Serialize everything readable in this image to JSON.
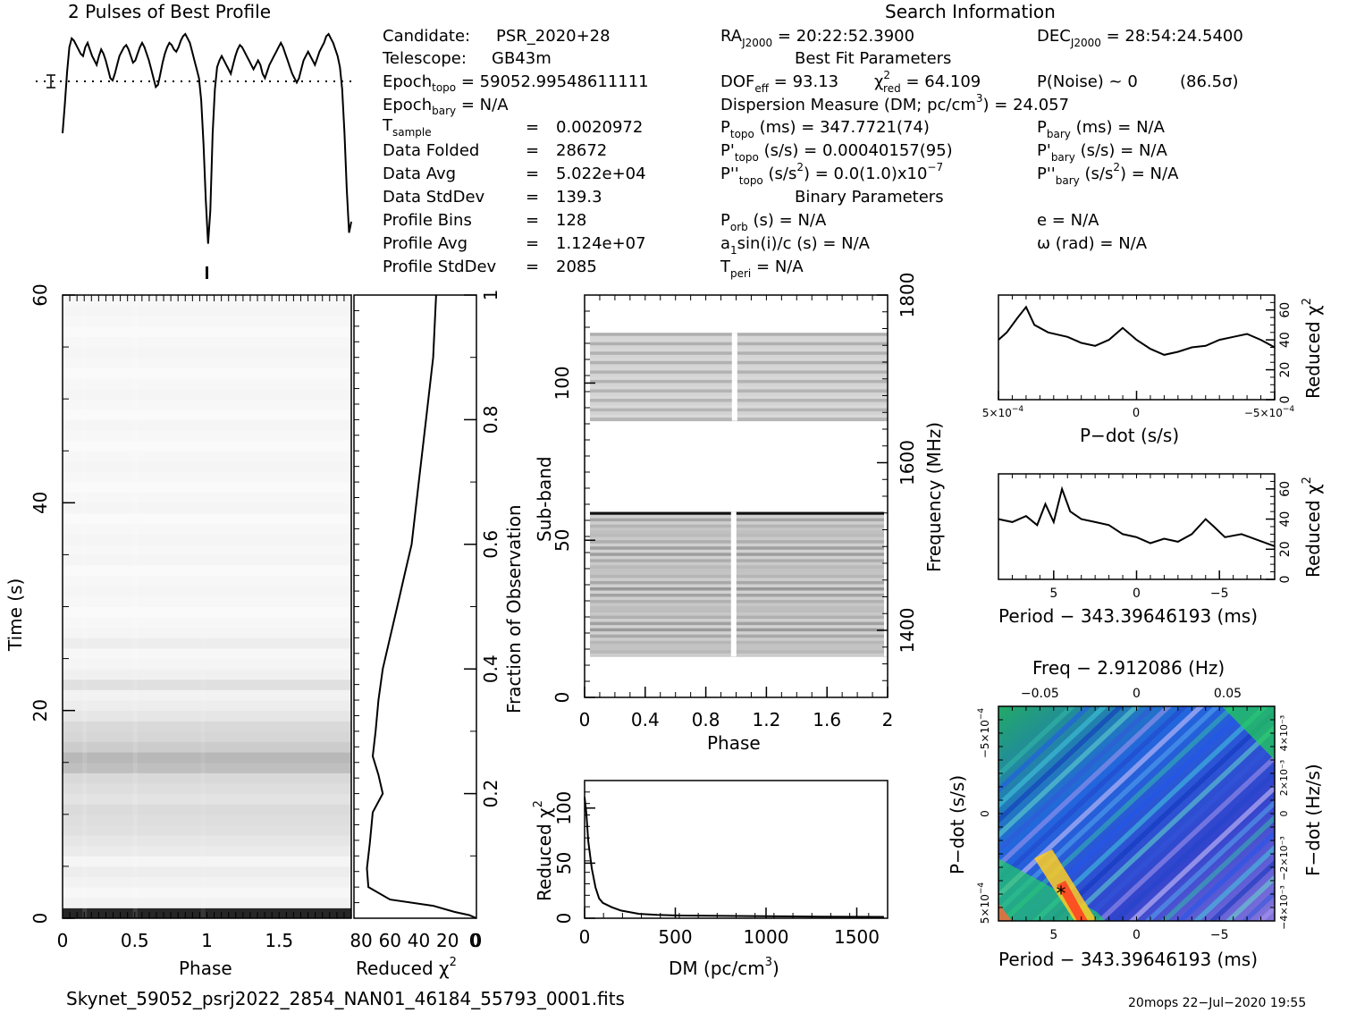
{
  "profile": {
    "title": "2 Pulses of Best Profile",
    "values": [
      0.55,
      0.68,
      0.83,
      0.94,
      0.98,
      0.97,
      0.95,
      0.93,
      0.91,
      0.9,
      0.94,
      0.96,
      0.93,
      0.9,
      0.88,
      0.86,
      0.9,
      0.93,
      0.91,
      0.88,
      0.84,
      0.8,
      0.79,
      0.82,
      0.86,
      0.9,
      0.92,
      0.94,
      0.95,
      0.93,
      0.9,
      0.87,
      0.88,
      0.91,
      0.94,
      0.96,
      0.94,
      0.91,
      0.88,
      0.84,
      0.8,
      0.76,
      0.77,
      0.82,
      0.87,
      0.91,
      0.94,
      0.96,
      0.95,
      0.93,
      0.92,
      0.94,
      0.97,
      0.99,
      1.0,
      0.98,
      0.96,
      0.92,
      0.88,
      0.84,
      0.8,
      0.7,
      0.5,
      0.25,
      0.05,
      0.2,
      0.55,
      0.75,
      0.85,
      0.88,
      0.9,
      0.88,
      0.86,
      0.84,
      0.82,
      0.86,
      0.9,
      0.93,
      0.95,
      0.94,
      0.92,
      0.9,
      0.88,
      0.86,
      0.84,
      0.86,
      0.88,
      0.86,
      0.82,
      0.8,
      0.83,
      0.86,
      0.88,
      0.9,
      0.92,
      0.94,
      0.96,
      0.94,
      0.91,
      0.88,
      0.85,
      0.82,
      0.8,
      0.78,
      0.8,
      0.84,
      0.88,
      0.9,
      0.92,
      0.9,
      0.88,
      0.86,
      0.89,
      0.92,
      0.94,
      0.96,
      0.99,
      1.0,
      0.98,
      0.96,
      0.93,
      0.9,
      0.85,
      0.75,
      0.55,
      0.3,
      0.1,
      0.15
    ],
    "mark_phase": 1.0
  },
  "info": {
    "candidate_label": "Candidate:",
    "candidate": "PSR_2020+28",
    "telescope_label": "Telescope:",
    "telescope": "GB43m",
    "epoch_topo_label": "Epoch",
    "epoch_topo_sub": "topo",
    "epoch_topo": "= 59052.99548611111",
    "epoch_bary_label": "Epoch",
    "epoch_bary_sub": "bary",
    "epoch_bary": "= N/A",
    "tsample_label": "T",
    "tsample_sub": "sample",
    "tsample": "0.0020972",
    "folded_label": "Data Folded",
    "folded": "28672",
    "avg_label": "Data Avg",
    "avg": "5.022e+04",
    "std_label": "Data StdDev",
    "std": "139.3",
    "bins_label": "Profile Bins",
    "bins": "128",
    "pavg_label": "Profile Avg",
    "pavg": "1.124e+07",
    "pstd_label": "Profile StdDev",
    "pstd": "2085",
    "eq": "="
  },
  "search": {
    "title": "Search Information",
    "ra_label": "RA",
    "ra_sub": "J2000",
    "ra": "= 20:22:52.3900",
    "dec_label": "DEC",
    "dec_sub": "J2000",
    "dec": "= 28:54:24.5400",
    "best_fit": "Best Fit Parameters",
    "dof_label": "DOF",
    "dof_sub": "eff",
    "dof": "= 93.13",
    "chi_label": "χ",
    "chi_sup": "2",
    "chi_sub": "red",
    "chi": "= 64.109",
    "pnoise": "P(Noise) ~ 0",
    "sigma": "(86.5σ)",
    "dm_line": "Dispersion Measure (DM; pc/cm",
    "dm_sup": "3",
    "dm_val": ") = 24.057",
    "ptopo_label": "P",
    "ptopo_sub": "topo",
    "ptopo": "(ms) =  347.7721(74)",
    "pbary_label": "P",
    "pbary_sub": "bary",
    "pbary": "(ms) = N/A",
    "pdtopo_label": "P'",
    "pdtopo_sub": "topo",
    "pdtopo": "(s/s) =  0.00040157(95)",
    "pdbary_label": "P'",
    "pdbary_sub": "bary",
    "pdbary": "(s/s) = N/A",
    "pddtopo_label": "P''",
    "pddtopo_sub": "topo",
    "pddtopo_a": "(s/s",
    "pddtopo_sup": "2",
    "pddtopo_b": ") = 0.0(1.0)x10",
    "pddtopo_exp": "−7",
    "pddbary_label": "P''",
    "pddbary_sub": "bary",
    "pddbary_a": "(s/s",
    "pddbary_sup": "2",
    "pddbary_b": ") = N/A",
    "binary": "Binary Parameters",
    "porb_label": "P",
    "porb_sub": "orb",
    "porb": "(s) = N/A",
    "e": "e = N/A",
    "asini_a": "a",
    "asini_sub": "1",
    "asini_b": "sin(i)/c (s) = N/A",
    "omega": "ω (rad) = N/A",
    "tperi_label": "T",
    "tperi_sub": "peri",
    "tperi": "= N/A"
  },
  "time_phase": {
    "xlabel": "Phase",
    "ylabel": "Time (s)",
    "xticks": [
      "0",
      "0.5",
      "1",
      "1.5"
    ],
    "yticks": [
      "0",
      "20",
      "40",
      "60"
    ],
    "rows": [
      0.15,
      0.95,
      0.97,
      0.95,
      0.93,
      0.96,
      0.92,
      0.9,
      0.88,
      0.87,
      0.86,
      0.89,
      0.87,
      0.85,
      0.75,
      0.72,
      0.8,
      0.84,
      0.85,
      0.9,
      0.93,
      0.95,
      0.88,
      0.94,
      0.96,
      0.97,
      0.93,
      0.96,
      0.97,
      0.98,
      0.97,
      0.96,
      0.97,
      0.98,
      0.96,
      0.97,
      0.96,
      0.97,
      0.98,
      0.96,
      0.97,
      0.98,
      0.97,
      0.96,
      0.97,
      0.98,
      0.97,
      0.96,
      0.98,
      0.97,
      0.96,
      0.97,
      0.98,
      0.97,
      0.96,
      0.97,
      0.98,
      0.97,
      0.96,
      0.97
    ]
  },
  "chi_time": {
    "xlabel": "Reduced χ",
    "xlabel_sup": "2",
    "xticks": [
      "80",
      "60",
      "40",
      "20",
      "0"
    ],
    "right_label": "Fraction of Observation",
    "rticks": [
      "0.2",
      "0.4",
      "0.6",
      "0.8",
      "1"
    ],
    "curve": [
      [
        0.0,
        0.0
      ],
      [
        5,
        0.005
      ],
      [
        15,
        0.01
      ],
      [
        30,
        0.02
      ],
      [
        60,
        0.03
      ],
      [
        75,
        0.05
      ],
      [
        76,
        0.08
      ],
      [
        74,
        0.12
      ],
      [
        72,
        0.17
      ],
      [
        65,
        0.2
      ],
      [
        68,
        0.23
      ],
      [
        72,
        0.26
      ],
      [
        70,
        0.3
      ],
      [
        68,
        0.35
      ],
      [
        65,
        0.4
      ],
      [
        60,
        0.45
      ],
      [
        55,
        0.5
      ],
      [
        50,
        0.55
      ],
      [
        45,
        0.6
      ],
      [
        40,
        0.7
      ],
      [
        35,
        0.8
      ],
      [
        30,
        0.9
      ],
      [
        28,
        1.0
      ]
    ]
  },
  "subband": {
    "xlabel": "Phase",
    "ylabel": "Sub-band",
    "xticks": [
      "0",
      "0.4",
      "0.8",
      "1.2",
      "1.6",
      "2"
    ],
    "yticks": [
      "0",
      "50",
      "100"
    ],
    "right_label": "Frequency (MHz)",
    "rticks": [
      "1400",
      "1600",
      "1800"
    ]
  },
  "dm_chi": {
    "xlabel": "DM (pc/cm",
    "xlabel_sup": "3",
    "xlabel_end": ")",
    "ylabel": "Reduced χ",
    "ylabel_sup": "2",
    "xticks": [
      "0",
      "500",
      "1000",
      "1500"
    ],
    "yticks": [
      "0",
      "50",
      "100"
    ],
    "curve": [
      [
        0,
        110
      ],
      [
        10,
        95
      ],
      [
        20,
        70
      ],
      [
        40,
        45
      ],
      [
        60,
        28
      ],
      [
        80,
        18
      ],
      [
        100,
        14
      ],
      [
        150,
        10
      ],
      [
        200,
        7
      ],
      [
        300,
        4
      ],
      [
        400,
        3
      ],
      [
        500,
        2.5
      ],
      [
        700,
        2.2
      ],
      [
        1000,
        1.8
      ],
      [
        1300,
        1.5
      ],
      [
        1650,
        1.2
      ]
    ]
  },
  "pdot_chi": {
    "xlabel": "P−dot (s/s)",
    "ylabel": "Reduced χ",
    "ylabel_sup": "2",
    "xtick_left": "5×10",
    "xtick_left_exp": "−4",
    "xtick_mid": "0",
    "xtick_right": "−5×10",
    "xtick_right_exp": "−4",
    "yticks": [
      "0",
      "20",
      "40",
      "60"
    ],
    "curve": [
      [
        0,
        40
      ],
      [
        0.03,
        45
      ],
      [
        0.07,
        55
      ],
      [
        0.1,
        62
      ],
      [
        0.13,
        50
      ],
      [
        0.18,
        45
      ],
      [
        0.25,
        42
      ],
      [
        0.3,
        38
      ],
      [
        0.35,
        36
      ],
      [
        0.4,
        40
      ],
      [
        0.45,
        48
      ],
      [
        0.5,
        40
      ],
      [
        0.55,
        34
      ],
      [
        0.6,
        30
      ],
      [
        0.65,
        32
      ],
      [
        0.7,
        35
      ],
      [
        0.75,
        36
      ],
      [
        0.8,
        40
      ],
      [
        0.85,
        42
      ],
      [
        0.9,
        44
      ],
      [
        0.95,
        40
      ],
      [
        1.0,
        35
      ]
    ]
  },
  "period_chi": {
    "xlabel": "Period − 343.39646193 (ms)",
    "ylabel": "Reduced χ",
    "ylabel_sup": "2",
    "xticks": [
      "5",
      "0",
      "−5"
    ],
    "yticks": [
      "0",
      "20",
      "40",
      "60"
    ],
    "curve": [
      [
        0,
        40
      ],
      [
        0.05,
        38
      ],
      [
        0.1,
        42
      ],
      [
        0.14,
        36
      ],
      [
        0.17,
        50
      ],
      [
        0.2,
        38
      ],
      [
        0.23,
        60
      ],
      [
        0.26,
        45
      ],
      [
        0.3,
        40
      ],
      [
        0.35,
        38
      ],
      [
        0.4,
        36
      ],
      [
        0.45,
        30
      ],
      [
        0.5,
        28
      ],
      [
        0.55,
        24
      ],
      [
        0.6,
        27
      ],
      [
        0.65,
        25
      ],
      [
        0.7,
        30
      ],
      [
        0.75,
        40
      ],
      [
        0.78,
        35
      ],
      [
        0.82,
        28
      ],
      [
        0.88,
        30
      ],
      [
        0.94,
        26
      ],
      [
        1.0,
        22
      ]
    ]
  },
  "ppdot": {
    "top_label": "Freq − 2.912086 (Hz)",
    "top_ticks": [
      "−0.05",
      "0",
      "0.05"
    ],
    "xlabel": "Period − 343.39646193 (ms)",
    "xticks": [
      "5",
      "0",
      "−5"
    ],
    "ylabel": "P−dot (s/s)",
    "yticks_top": "−5×10",
    "ytick_top_exp": "−4",
    "ytick_mid": "0",
    "yticks_bot": "5×10",
    "ytick_bot_exp": "−4",
    "right_label": "F−dot (Hz/s)",
    "rticks": [
      "4×10⁻³",
      "2×10⁻³",
      "0",
      "−2×10⁻³",
      "−4×10⁻³"
    ],
    "marker": "*"
  },
  "footer": {
    "file": "Skynet_59052_psrj2022_2854_NAN01_46184_55793_0001.fits",
    "stamp": "20mops  22−Jul−2020 19:55"
  }
}
